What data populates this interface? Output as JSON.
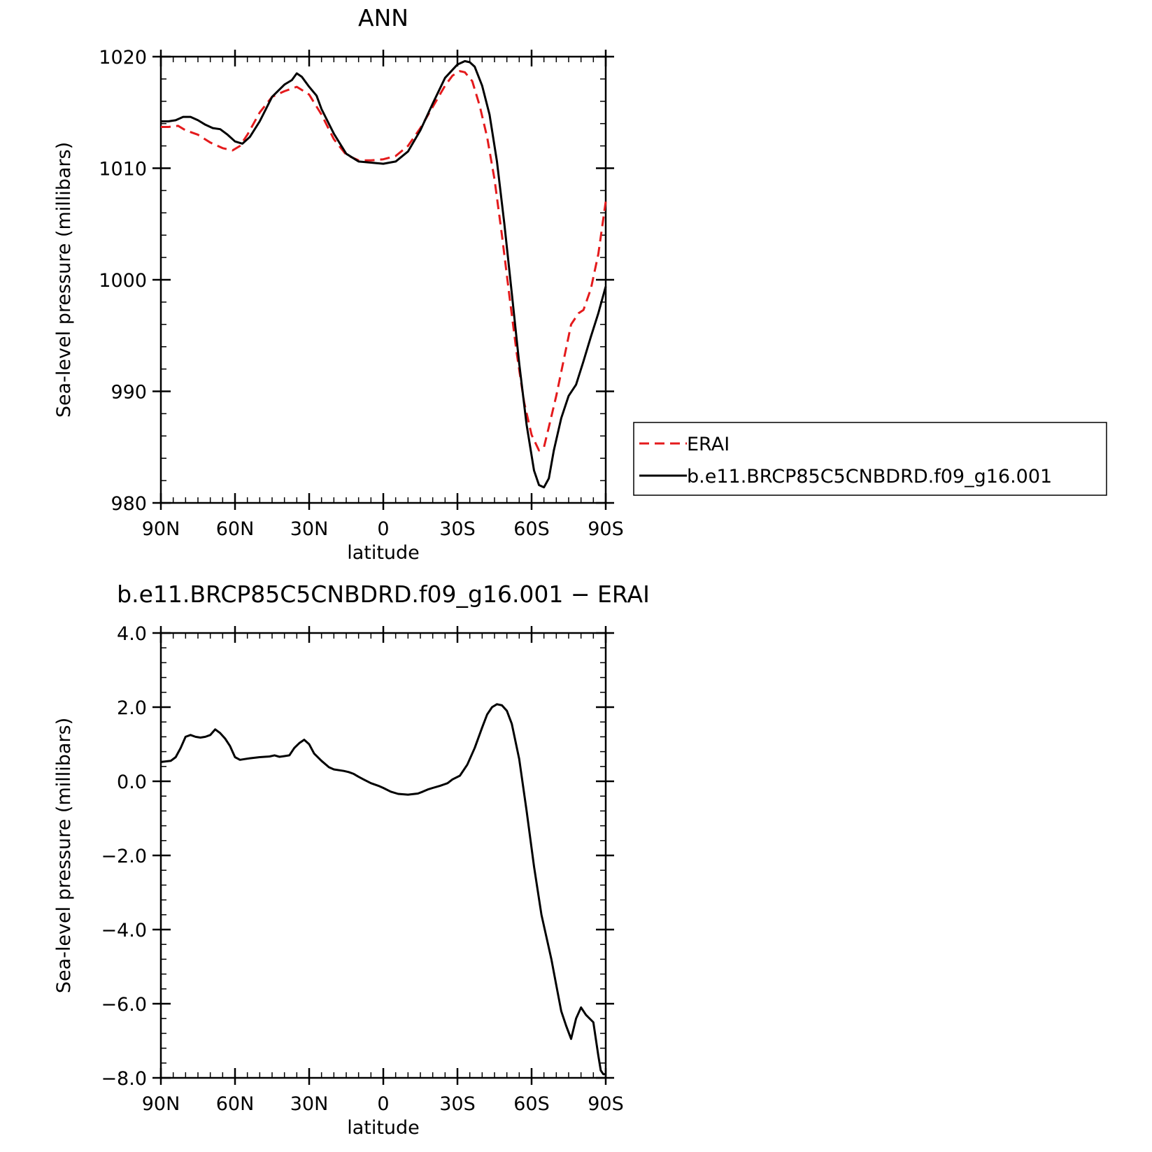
{
  "chart_data": [
    {
      "type": "line",
      "title": "ANN",
      "xlabel": "latitude",
      "ylabel": "Sea-level pressure (millibars)",
      "xlim": [
        90,
        -90
      ],
      "ylim": [
        980,
        1020
      ],
      "x_ticks": [
        90,
        60,
        30,
        0,
        -30,
        -60,
        -90
      ],
      "x_tick_labels": [
        "90N",
        "60N",
        "30N",
        "0",
        "30S",
        "60S",
        "90S"
      ],
      "y_ticks": [
        980,
        990,
        1000,
        1010,
        1020
      ],
      "y_tick_labels": [
        "980",
        "990",
        "1000",
        "1010",
        "1020"
      ],
      "legend": {
        "placement": "right",
        "entries": [
          "ERAI",
          "b.e11.BRCP85C5CNBDRD.f09_g16.001"
        ]
      },
      "series": [
        {
          "name": "ERAI",
          "color": "#e41a1c",
          "dash": "dashed",
          "x": [
            90,
            87,
            83,
            80,
            75,
            70,
            65,
            61,
            58,
            55,
            50,
            45,
            40,
            35,
            30,
            25,
            20,
            15,
            10,
            5,
            0,
            -5,
            -10,
            -15,
            -20,
            -25,
            -28,
            -31,
            -33,
            -36,
            -39,
            -42,
            -45,
            -48,
            -51,
            -54,
            -57,
            -60,
            -63,
            -65,
            -67,
            -70,
            -73,
            -76,
            -79,
            -81,
            -84,
            -87,
            -90
          ],
          "y": [
            1013.7,
            1013.7,
            1013.8,
            1013.4,
            1013.0,
            1012.3,
            1011.8,
            1011.6,
            1012.0,
            1013.0,
            1015.0,
            1016.4,
            1016.9,
            1017.3,
            1016.6,
            1014.8,
            1012.6,
            1011.2,
            1010.7,
            1010.7,
            1010.8,
            1011.1,
            1012.0,
            1013.6,
            1015.5,
            1017.4,
            1018.3,
            1018.7,
            1018.6,
            1017.8,
            1015.6,
            1012.8,
            1009.0,
            1004.0,
            998.6,
            993.4,
            989.0,
            986.1,
            984.7,
            985.0,
            986.8,
            989.6,
            992.8,
            996.0,
            997.0,
            997.3,
            999.2,
            1002.3,
            1007.0
          ]
        },
        {
          "name": "b.e11.BRCP85C5CNBDRD.f09_g16.001",
          "color": "#000000",
          "dash": "solid",
          "x": [
            90,
            87,
            84,
            81,
            78,
            75,
            72,
            69,
            66,
            63,
            60,
            57,
            54,
            50,
            45,
            40,
            37,
            35,
            33,
            30,
            27,
            25,
            20,
            15,
            10,
            5,
            0,
            -5,
            -10,
            -15,
            -20,
            -25,
            -30,
            -33,
            -35,
            -37,
            -40,
            -43,
            -46,
            -49,
            -52,
            -55,
            -58,
            -61,
            -63,
            -65,
            -67,
            -69,
            -72,
            -75,
            -78,
            -81,
            -84,
            -87,
            -90
          ],
          "y": [
            1014.2,
            1014.2,
            1014.3,
            1014.6,
            1014.6,
            1014.3,
            1013.9,
            1013.6,
            1013.5,
            1013.0,
            1012.4,
            1012.2,
            1012.8,
            1014.2,
            1016.4,
            1017.5,
            1017.9,
            1018.5,
            1018.2,
            1017.3,
            1016.5,
            1015.3,
            1013.1,
            1011.3,
            1010.6,
            1010.5,
            1010.4,
            1010.6,
            1011.5,
            1013.4,
            1015.8,
            1018.1,
            1019.3,
            1019.6,
            1019.5,
            1019.1,
            1017.4,
            1014.8,
            1010.6,
            1005.0,
            998.8,
            992.5,
            987.0,
            982.9,
            981.6,
            981.4,
            982.2,
            984.7,
            987.6,
            989.6,
            990.6,
            992.7,
            994.9,
            997.0,
            999.4
          ]
        }
      ]
    },
    {
      "type": "line",
      "title": "b.e11.BRCP85C5CNBDRD.f09_g16.001  −  ERAI",
      "xlabel": "latitude",
      "ylabel": "Sea-level pressure (millibars)",
      "xlim": [
        90,
        -90
      ],
      "ylim": [
        -8.0,
        4.0
      ],
      "x_ticks": [
        90,
        60,
        30,
        0,
        -30,
        -60,
        -90
      ],
      "x_tick_labels": [
        "90N",
        "60N",
        "30N",
        "0",
        "30S",
        "60S",
        "90S"
      ],
      "y_ticks": [
        -8.0,
        -6.0,
        -4.0,
        -2.0,
        0.0,
        2.0,
        4.0
      ],
      "y_tick_labels": [
        "−8.0",
        "−6.0",
        "−4.0",
        "−2.0",
        "0.0",
        "2.0",
        "4.0"
      ],
      "series": [
        {
          "color": "#000000",
          "dash": "solid",
          "x": [
            90,
            86,
            84,
            82,
            80,
            78,
            76,
            74,
            72,
            70,
            68,
            66,
            64,
            62,
            60,
            58,
            56,
            54,
            50,
            46,
            44,
            42,
            40,
            38,
            36,
            34,
            32,
            30,
            28,
            25,
            22,
            20,
            16,
            14,
            12,
            10,
            8,
            5,
            2,
            0,
            -3,
            -6,
            -10,
            -14,
            -16,
            -18,
            -20,
            -23,
            -26,
            -28,
            -31,
            -34,
            -37,
            -40,
            -42,
            -44,
            -46,
            -48,
            -50,
            -52,
            -55,
            -58,
            -61,
            -64,
            -66,
            -68,
            -70,
            -72,
            -74,
            -76,
            -78,
            -80,
            -82,
            -85,
            -87,
            -88,
            -89,
            -90
          ],
          "y": [
            0.52,
            0.55,
            0.65,
            0.9,
            1.2,
            1.25,
            1.2,
            1.18,
            1.2,
            1.25,
            1.4,
            1.3,
            1.15,
            0.95,
            0.65,
            0.58,
            0.6,
            0.62,
            0.65,
            0.67,
            0.7,
            0.66,
            0.68,
            0.7,
            0.9,
            1.03,
            1.12,
            1.0,
            0.75,
            0.55,
            0.38,
            0.32,
            0.28,
            0.25,
            0.2,
            0.12,
            0.05,
            -0.05,
            -0.12,
            -0.18,
            -0.28,
            -0.34,
            -0.36,
            -0.33,
            -0.28,
            -0.22,
            -0.18,
            -0.12,
            -0.05,
            0.05,
            0.15,
            0.45,
            0.9,
            1.45,
            1.8,
            2.0,
            2.08,
            2.05,
            1.9,
            1.55,
            0.6,
            -0.8,
            -2.3,
            -3.6,
            -4.2,
            -4.8,
            -5.5,
            -6.2,
            -6.6,
            -6.95,
            -6.4,
            -6.1,
            -6.3,
            -6.5,
            -7.4,
            -7.8,
            -7.9,
            -7.9
          ]
        }
      ]
    }
  ]
}
